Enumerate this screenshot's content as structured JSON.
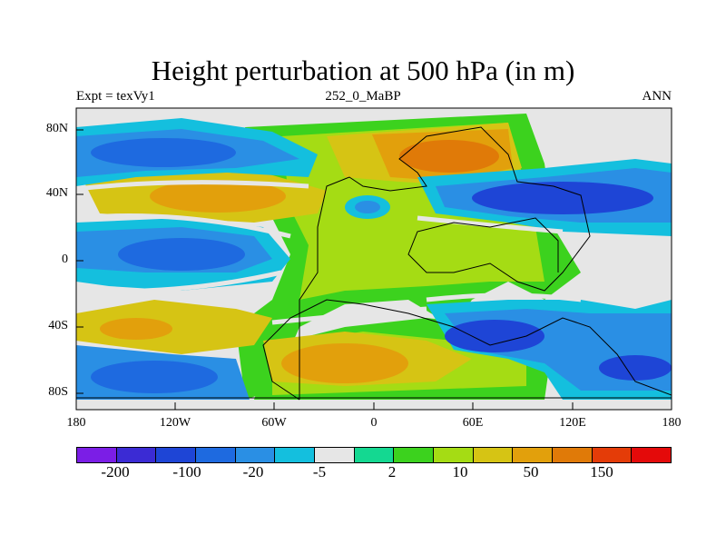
{
  "title": "Height perturbation at 500 hPa (in m)",
  "subtitle": {
    "left": "Expt = texVy1",
    "center": "252_0_MaBP",
    "right": "ANN"
  },
  "axes": {
    "lat_labels": [
      "80N",
      "40N",
      "0",
      "40S",
      "80S"
    ],
    "lon_labels": [
      "180",
      "120W",
      "60W",
      "0",
      "60E",
      "120E",
      "180"
    ]
  },
  "colorbar": {
    "colors": [
      "#7b1ee6",
      "#3b2bd4",
      "#1e45d6",
      "#1e6ae0",
      "#2a8fe4",
      "#14bfde",
      "#e6e6e6",
      "#14d891",
      "#3cd21e",
      "#a5dc14",
      "#d6c414",
      "#e2a00c",
      "#e07a08",
      "#e43c08",
      "#e40a0a"
    ],
    "labels": [
      "-200",
      "-100",
      "-20",
      "-5",
      "2",
      "10",
      "50",
      "150"
    ]
  }
}
